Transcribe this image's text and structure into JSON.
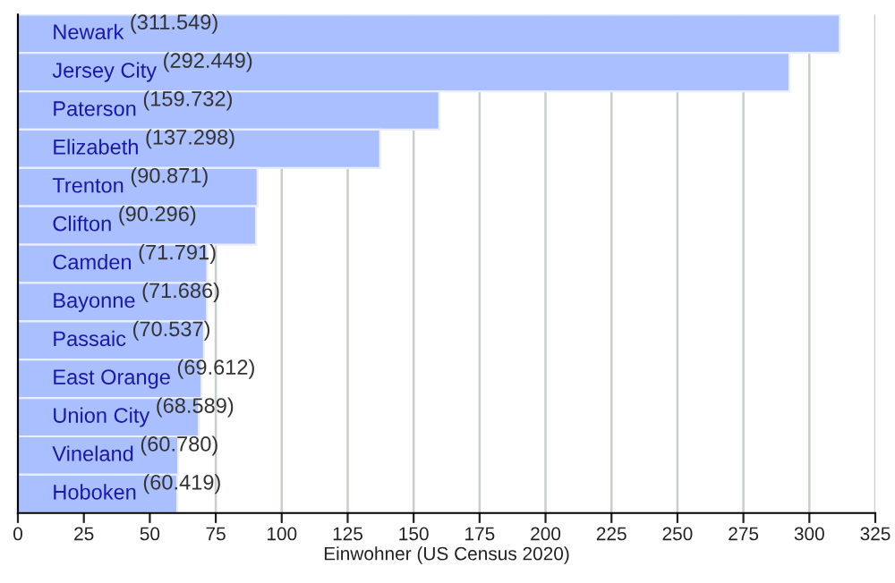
{
  "chart_data": {
    "type": "bar",
    "orientation": "horizontal",
    "xlabel": "Einwohner (US Census 2020)",
    "categories": [
      "Newark",
      "Jersey City",
      "Paterson",
      "Elizabeth",
      "Trenton",
      "Clifton",
      "Camden",
      "Bayonne",
      "Passaic",
      "East Orange",
      "Union City",
      "Vineland",
      "Hoboken"
    ],
    "values": [
      311.549,
      292.449,
      159.732,
      137.298,
      90.871,
      90.296,
      71.791,
      71.686,
      70.537,
      69.612,
      68.589,
      60.78,
      60.419
    ],
    "value_labels": [
      "(311.549)",
      "(292.449)",
      "(159.732)",
      "(137.298)",
      "(90.871)",
      "(90.296)",
      "(71.791)",
      "(71.686)",
      "(70.537)",
      "(69.612)",
      "(68.589)",
      "(60.780)",
      "(60.419)"
    ],
    "color": "#aabfff",
    "xlim": [
      0,
      325
    ],
    "xticks": [
      0,
      25,
      50,
      75,
      100,
      125,
      150,
      175,
      200,
      225,
      250,
      275,
      300,
      325
    ],
    "grid": "x"
  }
}
